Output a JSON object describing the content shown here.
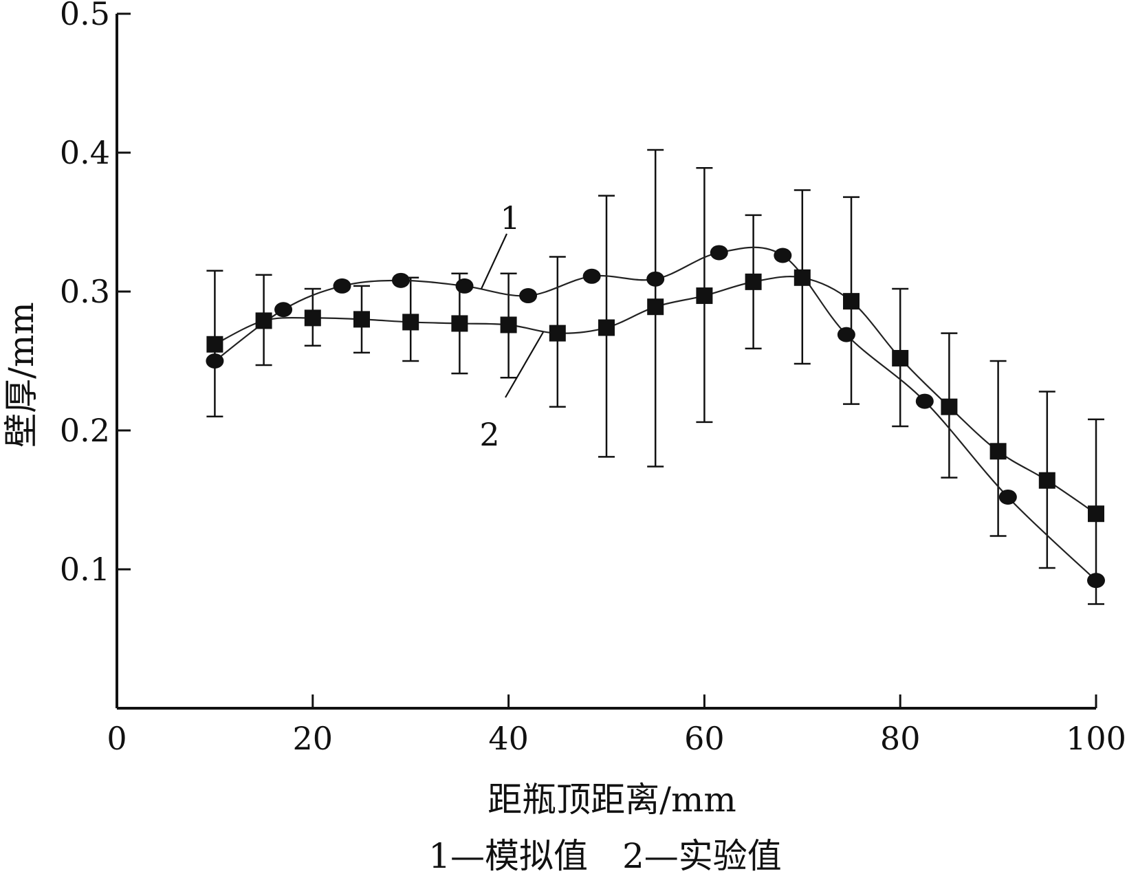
{
  "chart_data": {
    "type": "line",
    "title": "",
    "xlabel": "距瓶顶距离/mm",
    "ylabel": "壁厚/mm",
    "xlim": [
      0,
      100
    ],
    "ylim": [
      0,
      0.5
    ],
    "xticks": [
      0,
      20,
      40,
      60,
      80,
      100
    ],
    "yticks": [
      0.1,
      0.2,
      0.3,
      0.4,
      0.5
    ],
    "xtick_labels": [
      "0",
      "20",
      "40",
      "60",
      "80",
      "100"
    ],
    "ytick_labels": [
      "0.1",
      "0.2",
      "0.3",
      "0.4",
      "0.5"
    ],
    "grid": false,
    "legend": "bottom caption",
    "series": [
      {
        "name": "1",
        "label": "1—模拟值",
        "marker": "circle",
        "x": [
          10,
          17,
          23,
          29,
          35.5,
          42,
          48.5,
          55,
          61.5,
          68,
          74.5,
          82.5,
          91,
          100
        ],
        "y": [
          0.25,
          0.287,
          0.304,
          0.308,
          0.304,
          0.297,
          0.311,
          0.309,
          0.328,
          0.326,
          0.269,
          0.221,
          0.152,
          0.092
        ]
      },
      {
        "name": "2",
        "label": "2—实验值",
        "marker": "square",
        "error_bars": true,
        "x": [
          10,
          15,
          20,
          25,
          30,
          35,
          40,
          45,
          50,
          55,
          60,
          65,
          70,
          75,
          80,
          85,
          90,
          95,
          100
        ],
        "y": [
          0.262,
          0.279,
          0.281,
          0.28,
          0.278,
          0.277,
          0.276,
          0.27,
          0.274,
          0.289,
          0.297,
          0.307,
          0.31,
          0.293,
          0.252,
          0.217,
          0.185,
          0.164,
          0.14
        ],
        "y_upper": [
          0.315,
          0.312,
          0.302,
          0.304,
          0.31,
          0.313,
          0.313,
          0.325,
          0.369,
          0.402,
          0.389,
          0.355,
          0.373,
          0.368,
          0.302,
          0.27,
          0.25,
          0.228,
          0.208
        ],
        "y_lower": [
          0.21,
          0.247,
          0.261,
          0.256,
          0.25,
          0.241,
          0.238,
          0.217,
          0.181,
          0.174,
          0.206,
          0.259,
          0.248,
          0.219,
          0.203,
          0.166,
          0.124,
          0.101,
          0.075
        ]
      }
    ],
    "annotations": [
      "1",
      "2"
    ],
    "caption": "1—模拟值　2—实验值"
  }
}
